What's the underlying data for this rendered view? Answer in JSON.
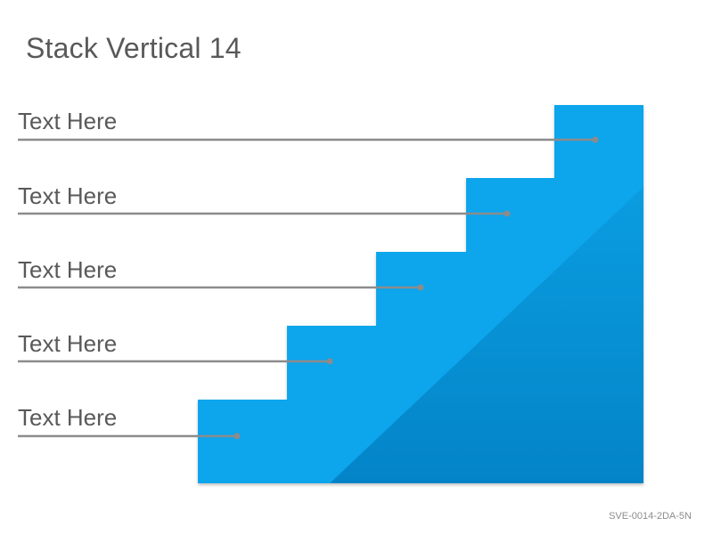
{
  "title": "Stack Vertical 14",
  "steps": [
    {
      "label": "Text Here"
    },
    {
      "label": "Text Here"
    },
    {
      "label": "Text Here"
    },
    {
      "label": "Text Here"
    },
    {
      "label": "Text Here"
    }
  ],
  "colors": {
    "step_fill": "#0ba5ec",
    "shade_top": "#0a9de0",
    "shade_bottom": "#0484c8",
    "leader_line": "#8c8c8c",
    "dot": "#8c8c8c",
    "text": "#595959"
  },
  "footer_code": "SVE-0014-2DA-5N"
}
